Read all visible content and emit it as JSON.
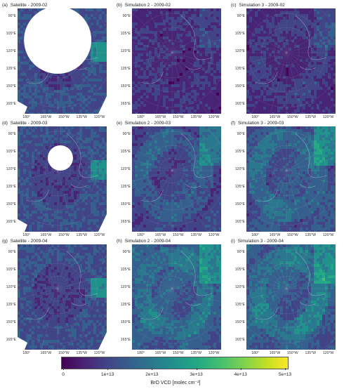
{
  "panels": [
    {
      "label": "(a)",
      "title": "Satellite - 2009-02",
      "kind": "satellite",
      "gap": "large"
    },
    {
      "label": "(b)",
      "title": "Simulation 2 - 2009-02",
      "kind": "sim",
      "intensity": 0.25
    },
    {
      "label": "(c)",
      "title": "Simulation 3 - 2009-02",
      "kind": "sim",
      "intensity": 0.28
    },
    {
      "label": "(d)",
      "title": "Satellite - 2009-03",
      "kind": "satellite",
      "gap": "medium"
    },
    {
      "label": "(e)",
      "title": "Simulation 2 - 2009-03",
      "kind": "sim",
      "intensity": 0.45
    },
    {
      "label": "(f)",
      "title": "Simulation 3 - 2009-03",
      "kind": "sim",
      "intensity": 0.55
    },
    {
      "label": "(g)",
      "title": "Satellite - 2009-04",
      "kind": "satellite",
      "gap": "none"
    },
    {
      "label": "(h)",
      "title": "Simulation 2 - 2009-04",
      "kind": "sim",
      "intensity": 0.6
    },
    {
      "label": "(i)",
      "title": "Simulation 3 - 2009-04",
      "kind": "sim",
      "intensity": 0.62
    }
  ],
  "lat_labels": [
    "90°E",
    "105°E",
    "120°E",
    "135°E",
    "150°E",
    "165°E"
  ],
  "lon_labels": [
    "180°",
    "165°W",
    "150°W",
    "135°W",
    "120°W"
  ],
  "colorbar": {
    "ticks": [
      "0",
      "1e+13",
      "2e+13",
      "3e+13",
      "4e+13",
      "5e+13"
    ],
    "range": [
      0,
      50000000000000.0
    ],
    "label": "BrO VCD [molec cm⁻²]",
    "colors": [
      "#440154",
      "#414487",
      "#2a788e",
      "#22a884",
      "#7ad151",
      "#fde725"
    ]
  }
}
